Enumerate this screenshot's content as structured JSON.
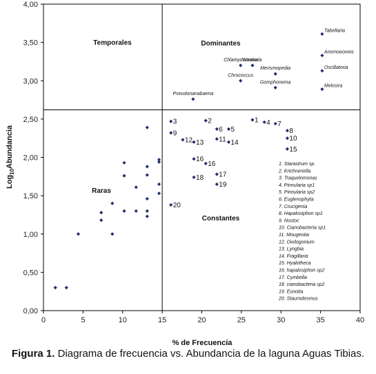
{
  "chart_data": {
    "type": "scatter",
    "title": "",
    "xlabel": "% de Frecuencia",
    "ylabel": "Log10 Abundancia",
    "ylabel_parts": [
      "Log",
      "10",
      "Abundancia"
    ],
    "xlim": [
      0,
      40
    ],
    "ylim": [
      0,
      4
    ],
    "x_ticks": [
      "0",
      "5",
      "10",
      "15",
      "20",
      "25",
      "30",
      "35",
      "40"
    ],
    "y_ticks": [
      "0,00",
      "0,50",
      "1,00",
      "1,50",
      "2,00",
      "2,50",
      "3,00",
      "3,50",
      "4,00"
    ],
    "dividers": {
      "x": 15,
      "y": 2.62
    },
    "quadrants": [
      "Temporales",
      "Dominantes",
      "Raras",
      "Constantes"
    ],
    "points": [
      {
        "x": 1.5,
        "y": 0.3,
        "label": ""
      },
      {
        "x": 2.9,
        "y": 0.3,
        "label": ""
      },
      {
        "x": 4.4,
        "y": 1.0,
        "label": ""
      },
      {
        "x": 7.3,
        "y": 1.28,
        "label": ""
      },
      {
        "x": 7.3,
        "y": 1.18,
        "label": ""
      },
      {
        "x": 8.7,
        "y": 1.4,
        "label": ""
      },
      {
        "x": 8.7,
        "y": 1.0,
        "label": ""
      },
      {
        "x": 10.2,
        "y": 1.93,
        "label": ""
      },
      {
        "x": 10.2,
        "y": 1.76,
        "label": ""
      },
      {
        "x": 10.2,
        "y": 1.3,
        "label": ""
      },
      {
        "x": 11.7,
        "y": 1.61,
        "label": ""
      },
      {
        "x": 11.7,
        "y": 1.3,
        "label": ""
      },
      {
        "x": 13.1,
        "y": 2.39,
        "label": ""
      },
      {
        "x": 13.1,
        "y": 1.88,
        "label": ""
      },
      {
        "x": 13.1,
        "y": 1.77,
        "label": ""
      },
      {
        "x": 13.1,
        "y": 1.46,
        "label": ""
      },
      {
        "x": 13.1,
        "y": 1.3,
        "label": ""
      },
      {
        "x": 13.1,
        "y": 1.23,
        "label": ""
      },
      {
        "x": 14.6,
        "y": 1.97,
        "label": ""
      },
      {
        "x": 14.6,
        "y": 1.94,
        "label": ""
      },
      {
        "x": 14.6,
        "y": 1.65,
        "label": ""
      },
      {
        "x": 14.6,
        "y": 1.53,
        "label": ""
      },
      {
        "x": 16.1,
        "y": 2.47,
        "label": "3"
      },
      {
        "x": 16.1,
        "y": 2.32,
        "label": "9"
      },
      {
        "x": 16.1,
        "y": 1.38,
        "label": "20"
      },
      {
        "x": 17.6,
        "y": 2.23,
        "label": "12"
      },
      {
        "x": 19.0,
        "y": 2.2,
        "label": "13"
      },
      {
        "x": 20.5,
        "y": 2.48,
        "label": "2"
      },
      {
        "x": 21.9,
        "y": 2.37,
        "label": "6"
      },
      {
        "x": 21.9,
        "y": 2.24,
        "label": "11"
      },
      {
        "x": 23.4,
        "y": 2.37,
        "label": "5"
      },
      {
        "x": 23.4,
        "y": 2.2,
        "label": "14"
      },
      {
        "x": 19.0,
        "y": 1.98,
        "label": "16"
      },
      {
        "x": 20.5,
        "y": 1.92,
        "label": "16"
      },
      {
        "x": 19.0,
        "y": 1.74,
        "label": "18"
      },
      {
        "x": 21.9,
        "y": 1.78,
        "label": "17"
      },
      {
        "x": 21.9,
        "y": 1.65,
        "label": "19"
      },
      {
        "x": 26.4,
        "y": 2.49,
        "label": "1"
      },
      {
        "x": 27.9,
        "y": 2.46,
        "label": "4"
      },
      {
        "x": 29.3,
        "y": 2.44,
        "label": "7"
      },
      {
        "x": 30.8,
        "y": 2.35,
        "label": "8"
      },
      {
        "x": 30.8,
        "y": 2.25,
        "label": "10"
      },
      {
        "x": 30.8,
        "y": 2.11,
        "label": "15"
      },
      {
        "x": 18.9,
        "y": 2.76,
        "label": "Pseudonanabaena"
      },
      {
        "x": 24.9,
        "y": 3.2,
        "label": "Chlamydomona"
      },
      {
        "x": 26.4,
        "y": 3.2,
        "label": "Navicula"
      },
      {
        "x": 24.9,
        "y": 3.0,
        "label": "Chrococcus"
      },
      {
        "x": 29.3,
        "y": 3.09,
        "label": "Merismopedia"
      },
      {
        "x": 29.3,
        "y": 2.91,
        "label": "Gomphonema"
      },
      {
        "x": 35.2,
        "y": 3.61,
        "label": "Tabellaria"
      },
      {
        "x": 35.2,
        "y": 3.33,
        "label": "Anomoeoneis"
      },
      {
        "x": 35.2,
        "y": 3.13,
        "label": "Oscillatoria"
      },
      {
        "x": 35.2,
        "y": 2.89,
        "label": "Melosira"
      }
    ],
    "legend": [
      "1. Starastrum sp.",
      "2. Krichneriella",
      "3. Traquelomonas",
      "4. Pinnularia sp1",
      "5. Pinnularia sp2",
      "6. Euglenophyta",
      "7. Crucigenia",
      "8. Hapalosiphon sp1",
      "9. Nostoc",
      "10. Cianobacteria sp1",
      "11. Mougeotia",
      "12. Oedogonium",
      "13. Lyngbia",
      "14. Fragillaria",
      "15. Hyalotheca",
      "16. hapalosiphon sp2",
      "17. Cymbella",
      "18. cianobacteria sp2",
      "19. Eunotia",
      "20. Staurodesmus"
    ]
  },
  "caption": {
    "label": "Figura 1.",
    "text": " Diagrama de frecuencia vs. Abundancia de la laguna Aguas Tibias."
  }
}
